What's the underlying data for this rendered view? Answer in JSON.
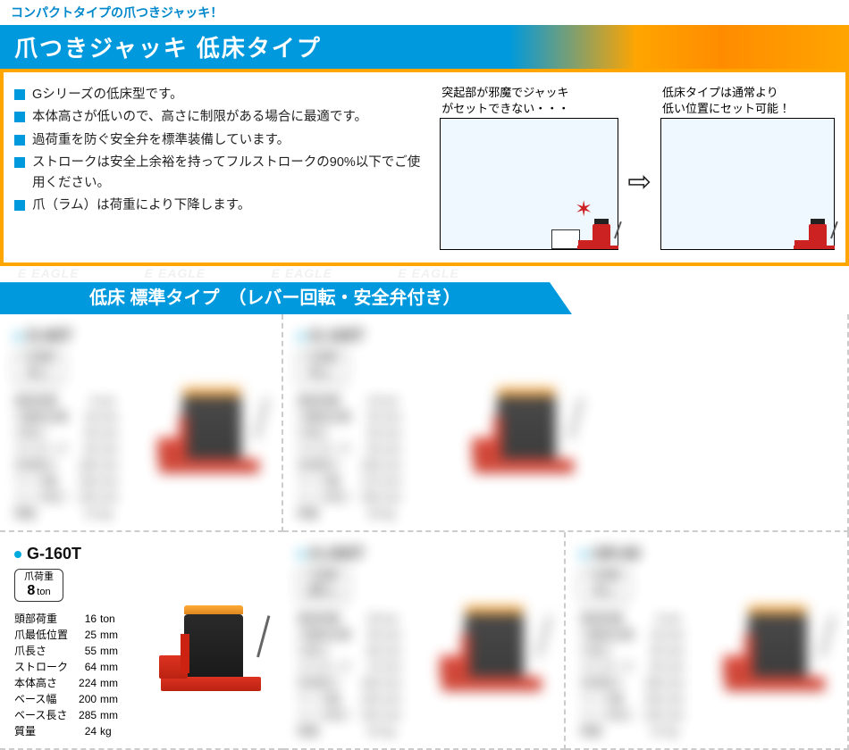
{
  "tagline": "コンパクトタイプの爪つきジャッキ！",
  "main_title": "爪つきジャッキ 低床タイプ",
  "watermark": "EAGLE",
  "bullets": [
    "Gシリーズの低床型です。",
    "本体高さが低いので、高さに制限がある場合に最適です。",
    "過荷重を防ぐ安全弁を標準装備しています。",
    "ストロークは安全上余裕を持ってフルストロークの90%以下でご使用ください。",
    "爪（ラム）は荷重により下降します。"
  ],
  "diagram1": {
    "line1": "突起部が邪魔でジャッキ",
    "line2": "がセットできない・・・"
  },
  "diagram2": {
    "line1": "低床タイプは通常より",
    "line2": "低い位置にセット可能 ！"
  },
  "section_title": "低床 標準タイプ　（レバー回転・安全弁付き）",
  "product": {
    "name": "G-160T",
    "capacity_label": "爪荷重",
    "capacity_value": "8",
    "capacity_unit": "ton",
    "specs": [
      {
        "label": "頭部荷重",
        "value": "16",
        "unit": "ton"
      },
      {
        "label": "爪最低位置",
        "value": "25",
        "unit": "mm"
      },
      {
        "label": "爪長さ",
        "value": "55",
        "unit": "mm"
      },
      {
        "label": "ストローク",
        "value": "64",
        "unit": "mm"
      },
      {
        "label": "本体高さ",
        "value": "224",
        "unit": "mm"
      },
      {
        "label": "ベース幅",
        "value": "200",
        "unit": "mm"
      },
      {
        "label": "ベース長さ",
        "value": "285",
        "unit": "mm"
      },
      {
        "label": "質量",
        "value": "24",
        "unit": "kg"
      }
    ]
  },
  "blurred_names": [
    "G-60T",
    "G-100T",
    "G-200T",
    "GR-60"
  ],
  "colors": {
    "blue": "#0099dd",
    "orange": "#ffa500",
    "jack_red": "#cc2222"
  }
}
